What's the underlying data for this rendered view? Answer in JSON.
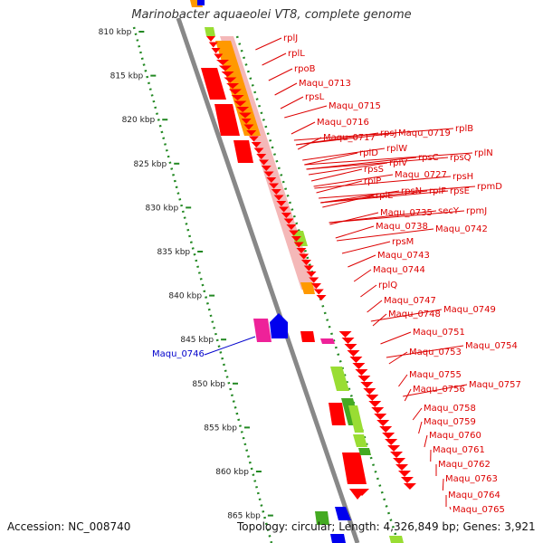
{
  "title": "Marinobacter aquaeolei VT8, complete genome",
  "footer": {
    "accession": "Accession: NC_008740",
    "topology": "Topology: circular; Length: 4,326,849 bp; Genes: 3,921"
  },
  "colors": {
    "ribosomal": "#f0a0a0",
    "cds_red": "#ff0000",
    "orange": "#ff9900",
    "green": "#99dd33",
    "dark_green": "#44aa22",
    "magenta": "#ee2299",
    "blue": "#0000ee",
    "label_red": "#dd0000",
    "label_blue": "#0000cc",
    "ruler": "#228822"
  },
  "ruler": [
    "810 kbp",
    "815 kbp",
    "820 kbp",
    "825 kbp",
    "830 kbp",
    "835 kbp",
    "840 kbp",
    "845 kbp",
    "850 kbp",
    "855 kbp",
    "860 kbp",
    "865 kbp"
  ],
  "gene_labels": [
    {
      "text": "rplJ",
      "color": "red"
    },
    {
      "text": "rplL",
      "color": "red"
    },
    {
      "text": "rpoB",
      "color": "red"
    },
    {
      "text": "Maqu_0713",
      "color": "red"
    },
    {
      "text": "rpsL",
      "color": "red"
    },
    {
      "text": "Maqu_0715",
      "color": "red"
    },
    {
      "text": "Maqu_0716",
      "color": "red"
    },
    {
      "text": "Maqu_0717",
      "color": "red"
    },
    {
      "text": "rpsJ",
      "color": "red"
    },
    {
      "text": "Maqu_0719",
      "color": "red"
    },
    {
      "text": "rplB",
      "color": "red"
    },
    {
      "text": "rplD",
      "color": "red"
    },
    {
      "text": "rplW",
      "color": "red"
    },
    {
      "text": "rpsS",
      "color": "red"
    },
    {
      "text": "rplV",
      "color": "red"
    },
    {
      "text": "rpsC",
      "color": "red"
    },
    {
      "text": "rpsQ",
      "color": "red"
    },
    {
      "text": "rplN",
      "color": "red"
    },
    {
      "text": "rplP",
      "color": "red"
    },
    {
      "text": "Maqu_0727",
      "color": "red"
    },
    {
      "text": "rpsH",
      "color": "red"
    },
    {
      "text": "rplE",
      "color": "red"
    },
    {
      "text": "rpsN",
      "color": "red"
    },
    {
      "text": "rplF",
      "color": "red"
    },
    {
      "text": "rpsE",
      "color": "red"
    },
    {
      "text": "rpmD",
      "color": "red"
    },
    {
      "text": "Maqu_0735",
      "color": "red"
    },
    {
      "text": "secY",
      "color": "red"
    },
    {
      "text": "rpmJ",
      "color": "red"
    },
    {
      "text": "Maqu_0738",
      "color": "red"
    },
    {
      "text": "Maqu_0742",
      "color": "red"
    },
    {
      "text": "rpsM",
      "color": "red"
    },
    {
      "text": "Maqu_0743",
      "color": "red"
    },
    {
      "text": "Maqu_0744",
      "color": "red"
    },
    {
      "text": "rplQ",
      "color": "red"
    },
    {
      "text": "Maqu_0747",
      "color": "red"
    },
    {
      "text": "Maqu_0748",
      "color": "red"
    },
    {
      "text": "Maqu_0749",
      "color": "red"
    },
    {
      "text": "Maqu_0746",
      "color": "blue"
    },
    {
      "text": "Maqu_0751",
      "color": "red"
    },
    {
      "text": "Maqu_0753",
      "color": "red"
    },
    {
      "text": "Maqu_0754",
      "color": "red"
    },
    {
      "text": "Maqu_0755",
      "color": "red"
    },
    {
      "text": "Maqu_0756",
      "color": "red"
    },
    {
      "text": "Maqu_0757",
      "color": "red"
    },
    {
      "text": "Maqu_0758",
      "color": "red"
    },
    {
      "text": "Maqu_0759",
      "color": "red"
    },
    {
      "text": "Maqu_0760",
      "color": "red"
    },
    {
      "text": "Maqu_0761",
      "color": "red"
    },
    {
      "text": "Maqu_0762",
      "color": "red"
    },
    {
      "text": "Maqu_0763",
      "color": "red"
    },
    {
      "text": "Maqu_0764",
      "color": "red"
    },
    {
      "text": "Maqu_0765",
      "color": "red"
    }
  ]
}
